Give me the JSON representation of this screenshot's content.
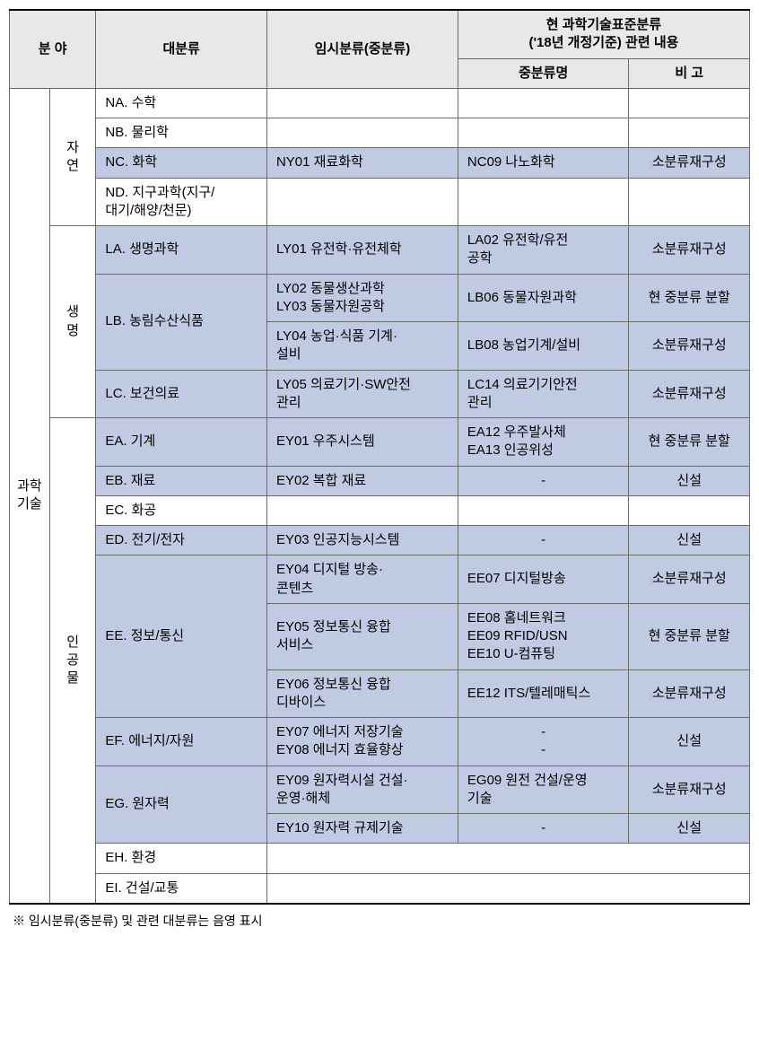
{
  "header": {
    "field": "분 야",
    "major": "대분류",
    "temp": "임시분류(중분류)",
    "current_title": "현 과학기술표준분류\n('18년 개정기준) 관련 내용",
    "mid": "중분류명",
    "note": "비 고"
  },
  "sections": {
    "sci_tech": "과학\n기술",
    "nature": "자\n연",
    "life": "생\n명",
    "artificial": "인\n공\n물"
  },
  "rows": {
    "na": "NA. 수학",
    "nb": "NB. 물리학",
    "nc": "NC. 화학",
    "nc_t": "NY01 재료화학",
    "nc_m": "NC09 나노화학",
    "nc_n": "소분류재구성",
    "nd": "ND. 지구과학(지구/\n대기/해양/천문)",
    "la": "LA. 생명과학",
    "la_t": "LY01 유전학·유전체학",
    "la_m": "LA02 유전학/유전\n공학",
    "la_n": "소분류재구성",
    "lb": "LB. 농림수산식품",
    "lb1_t": "LY02 동물생산과학\nLY03 동물자원공학",
    "lb1_m": "LB06 동물자원과학",
    "lb1_n": "현 중분류 분할",
    "lb2_t": "LY04 농업·식품 기계·\n설비",
    "lb2_m": "LB08 농업기계/설비",
    "lb2_n": "소분류재구성",
    "lc": "LC. 보건의료",
    "lc_t": "LY05 의료기기·SW안전\n관리",
    "lc_m": "LC14 의료기기안전\n관리",
    "lc_n": "소분류재구성",
    "ea": "EA. 기계",
    "ea_t": "EY01 우주시스템",
    "ea_m": "EA12 우주발사체\nEA13 인공위성",
    "ea_n": "현 중분류 분할",
    "eb": "EB. 재료",
    "eb_t": "EY02 복합 재료",
    "eb_m": "-",
    "eb_n": "신설",
    "ec": "EC. 화공",
    "ed": "ED. 전기/전자",
    "ed_t": "EY03 인공지능시스템",
    "ed_m": "-",
    "ed_n": "신설",
    "ee": "EE. 정보/통신",
    "ee1_t": "EY04 디지털 방송·\n콘텐츠",
    "ee1_m": "EE07 디지털방송",
    "ee1_n": "소분류재구성",
    "ee2_t": "EY05 정보통신 융합\n서비스",
    "ee2_m": "EE08 홈네트워크\nEE09 RFID/USN\nEE10 U-컴퓨팅",
    "ee2_n": "현 중분류 분할",
    "ee3_t": "EY06 정보통신 융합\n디바이스",
    "ee3_m": "EE12 ITS/텔레매틱스",
    "ee3_n": "소분류재구성",
    "ef": "EF. 에너지/자원",
    "ef_t": "EY07 에너지 저장기술\nEY08 에너지 효율향상",
    "ef_m": "-\n-",
    "ef_n": "신설",
    "eg": "EG. 원자력",
    "eg1_t": "EY09 원자력시설 건설·\n운영·해체",
    "eg1_m": "EG09 원전 건설/운영\n기술",
    "eg1_n": "소분류재구성",
    "eg2_t": "EY10 원자력 규제기술",
    "eg2_m": "-",
    "eg2_n": "신설",
    "eh": "EH. 환경",
    "ei": "EI. 건설/교통"
  },
  "footnote": "※ 임시분류(중분류) 및 관련 대분류는 음영 표시",
  "style": {
    "shaded_bg": "#c1cae3",
    "header_bg": "#e8e8e8",
    "border_color": "#6b6b6b",
    "font_size_pt": 15,
    "footnote_font_size_pt": 14
  }
}
